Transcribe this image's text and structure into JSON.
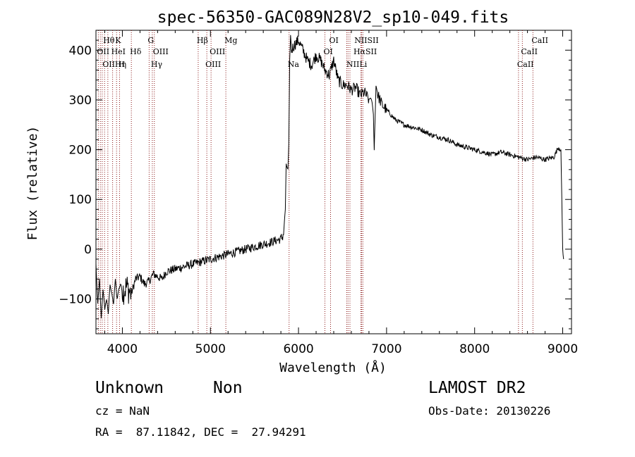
{
  "chart_data": {
    "type": "line",
    "title": "spec-56350-GAC089N28V2_sp10-049.fits",
    "xlabel": "Wavelength (Å)",
    "ylabel": "Flux (relative)",
    "xlim": [
      3700,
      9100
    ],
    "ylim": [
      -170,
      440
    ],
    "xticks": [
      4000,
      5000,
      6000,
      7000,
      8000,
      9000
    ],
    "yticks": [
      -100,
      0,
      100,
      200,
      300,
      400
    ],
    "xtick_labels": [
      "4000",
      "5000",
      "6000",
      "7000",
      "8000",
      "9000"
    ],
    "ytick_labels": [
      "−100",
      "0",
      "100",
      "200",
      "300",
      "400"
    ],
    "line_color": "#000000",
    "marker_color": "#8b1a1a",
    "spectrum": {
      "x": [
        3700,
        3720,
        3740,
        3760,
        3780,
        3800,
        3820,
        3840,
        3860,
        3880,
        3900,
        3920,
        3940,
        3960,
        3980,
        4000,
        4050,
        4100,
        4150,
        4200,
        4250,
        4300,
        4350,
        4400,
        4450,
        4500,
        4600,
        4700,
        4800,
        4900,
        5000,
        5100,
        5200,
        5300,
        5400,
        5500,
        5600,
        5650,
        5700,
        5750,
        5800,
        5830,
        5850,
        5860,
        5880,
        5890,
        5900,
        5910,
        5920,
        5950,
        6000,
        6050,
        6100,
        6150,
        6200,
        6250,
        6300,
        6350,
        6400,
        6450,
        6500,
        6550,
        6600,
        6650,
        6700,
        6750,
        6800,
        6820,
        6840,
        6850,
        6860,
        6880,
        6900,
        6950,
        7000,
        7100,
        7200,
        7300,
        7400,
        7500,
        7600,
        7700,
        7800,
        7900,
        8000,
        8100,
        8200,
        8300,
        8400,
        8500,
        8600,
        8700,
        8800,
        8900,
        8950,
        8980,
        9000,
        9010
      ],
      "y": [
        -30,
        -110,
        -60,
        -140,
        -80,
        -120,
        -100,
        -130,
        -70,
        -90,
        -110,
        -60,
        -100,
        -80,
        -70,
        -85,
        -75,
        -90,
        -60,
        -55,
        -70,
        -65,
        -50,
        -55,
        -60,
        -45,
        -40,
        -35,
        -30,
        -25,
        -20,
        -15,
        -10,
        -5,
        0,
        5,
        10,
        12,
        15,
        18,
        20,
        30,
        80,
        170,
        160,
        210,
        380,
        430,
        400,
        410,
        420,
        400,
        380,
        370,
        390,
        380,
        360,
        350,
        380,
        340,
        330,
        330,
        320,
        325,
        310,
        315,
        300,
        305,
        290,
        270,
        200,
        330,
        310,
        290,
        280,
        260,
        250,
        245,
        240,
        230,
        225,
        220,
        210,
        205,
        200,
        195,
        190,
        195,
        190,
        185,
        180,
        185,
        180,
        185,
        205,
        200,
        0,
        -20
      ]
    },
    "lines_top": [
      {
        "label": "Hθ",
        "x": 3798
      },
      {
        "label": "K",
        "x": 3934
      },
      {
        "label": "G",
        "x": 4304
      },
      {
        "label": "Hβ",
        "x": 4861
      },
      {
        "label": "Mg",
        "x": 5175
      },
      {
        "label": "OI",
        "x": 6364
      },
      {
        "label": "NIISII",
        "x": 6650
      },
      {
        "label": "CaII",
        "x": 8662
      }
    ],
    "lines_mid": [
      {
        "label": "OII",
        "x": 3727
      },
      {
        "label": "HeI",
        "x": 3889
      },
      {
        "label": "Hδ",
        "x": 4102
      },
      {
        "label": "OIII",
        "x": 4363
      },
      {
        "label": "OIII",
        "x": 5007
      },
      {
        "label": "OI",
        "x": 6300
      },
      {
        "label": "HαSII",
        "x": 6640
      },
      {
        "label": "CaII",
        "x": 8542
      }
    ],
    "lines_low": [
      {
        "label": "OIIHη",
        "x": 3790
      },
      {
        "label": "H",
        "x": 3968
      },
      {
        "label": "Hγ",
        "x": 4340
      },
      {
        "label": "OIII",
        "x": 4959
      },
      {
        "label": "Na",
        "x": 5893
      },
      {
        "label": "NII",
        "x": 6560
      },
      {
        "label": "Li",
        "x": 6708
      },
      {
        "label": "CaII",
        "x": 8498
      }
    ],
    "marker_positions": [
      3727,
      3750,
      3771,
      3798,
      3835,
      3889,
      3934,
      3968,
      4102,
      4304,
      4340,
      4363,
      4861,
      4959,
      5007,
      5175,
      5893,
      6300,
      6364,
      6548,
      6563,
      6584,
      6708,
      6717,
      6731,
      8498,
      8542,
      8662
    ]
  },
  "info": {
    "object_class": "Unknown",
    "subclass": "Non",
    "survey": "LAMOST DR2",
    "cz": "cz = NaN",
    "obs_date": "Obs-Date: 20130226",
    "coords": "RA =  87.11842, DEC =  27.94291"
  }
}
